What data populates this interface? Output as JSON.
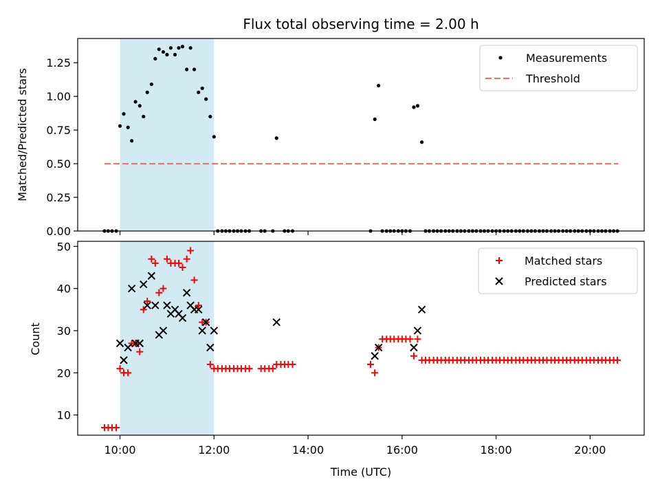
{
  "chart_data": [
    {
      "type": "scatter",
      "title": "Flux total observing time = 2.00 h",
      "xlabel": "",
      "ylabel": "Matched/Predicted stars",
      "xlim_hours": [
        9.1,
        21.15
      ],
      "ylim": [
        0,
        1.43
      ],
      "yticks": [
        "0.00",
        "0.25",
        "0.50",
        "0.75",
        "1.00",
        "1.25"
      ],
      "ytick_values": [
        0,
        0.25,
        0.5,
        0.75,
        1.0,
        1.25
      ],
      "highlight_span_hours": [
        10.0,
        12.0
      ],
      "colors": {
        "highlight": "#add8e6",
        "measurements": "#000000",
        "threshold": "#ff6666"
      },
      "legend": {
        "placement": "upper right",
        "entries": [
          "Measurements",
          "Threshold"
        ]
      },
      "threshold": {
        "name": "Threshold",
        "value": 0.5,
        "x_range_hours": [
          9.67,
          20.6
        ]
      },
      "series": [
        {
          "name": "Measurements",
          "points": [
            [
              9.67,
              0
            ],
            [
              9.75,
              0
            ],
            [
              9.83,
              0
            ],
            [
              9.92,
              0
            ],
            [
              10.0,
              0.78
            ],
            [
              10.08,
              0.87
            ],
            [
              10.17,
              0.77
            ],
            [
              10.25,
              0.67
            ],
            [
              10.33,
              0.96
            ],
            [
              10.42,
              0.93
            ],
            [
              10.5,
              0.85
            ],
            [
              10.58,
              1.03
            ],
            [
              10.67,
              1.09
            ],
            [
              10.75,
              1.28
            ],
            [
              10.83,
              1.35
            ],
            [
              10.92,
              1.33
            ],
            [
              11.0,
              1.31
            ],
            [
              11.08,
              1.36
            ],
            [
              11.17,
              1.31
            ],
            [
              11.25,
              1.36
            ],
            [
              11.33,
              1.37
            ],
            [
              11.42,
              1.2
            ],
            [
              11.5,
              1.36
            ],
            [
              11.58,
              1.2
            ],
            [
              11.67,
              1.03
            ],
            [
              11.75,
              1.06
            ],
            [
              11.83,
              0.98
            ],
            [
              11.92,
              0.85
            ],
            [
              12.0,
              0.7
            ],
            [
              12.08,
              0
            ],
            [
              12.17,
              0
            ],
            [
              12.25,
              0
            ],
            [
              12.33,
              0
            ],
            [
              12.42,
              0
            ],
            [
              12.5,
              0
            ],
            [
              12.58,
              0
            ],
            [
              12.67,
              0
            ],
            [
              12.75,
              0
            ],
            [
              13.0,
              0
            ],
            [
              13.08,
              0
            ],
            [
              13.25,
              0
            ],
            [
              13.33,
              0.69
            ],
            [
              13.5,
              0
            ],
            [
              13.58,
              0
            ],
            [
              13.67,
              0
            ],
            [
              15.33,
              0
            ],
            [
              15.42,
              0.83
            ],
            [
              15.5,
              1.08
            ],
            [
              15.58,
              0
            ],
            [
              15.67,
              0
            ],
            [
              15.75,
              0
            ],
            [
              15.83,
              0
            ],
            [
              15.92,
              0
            ],
            [
              16.0,
              0
            ],
            [
              16.08,
              0
            ],
            [
              16.17,
              0
            ],
            [
              16.25,
              0.92
            ],
            [
              16.33,
              0.93
            ],
            [
              16.42,
              0.66
            ],
            [
              16.5,
              0
            ],
            [
              16.58,
              0
            ],
            [
              16.67,
              0
            ],
            [
              16.75,
              0
            ],
            [
              16.83,
              0
            ],
            [
              16.92,
              0
            ],
            [
              17.0,
              0
            ],
            [
              17.08,
              0
            ],
            [
              17.17,
              0
            ],
            [
              17.25,
              0
            ],
            [
              17.33,
              0
            ],
            [
              17.42,
              0
            ],
            [
              17.5,
              0
            ],
            [
              17.58,
              0
            ],
            [
              17.67,
              0
            ],
            [
              17.75,
              0
            ],
            [
              17.83,
              0
            ],
            [
              17.92,
              0
            ],
            [
              18.0,
              0
            ],
            [
              18.08,
              0
            ],
            [
              18.17,
              0
            ],
            [
              18.25,
              0
            ],
            [
              18.33,
              0
            ],
            [
              18.42,
              0
            ],
            [
              18.5,
              0
            ],
            [
              18.58,
              0
            ],
            [
              18.67,
              0
            ],
            [
              18.75,
              0
            ],
            [
              18.83,
              0
            ],
            [
              18.92,
              0
            ],
            [
              19.0,
              0
            ],
            [
              19.08,
              0
            ],
            [
              19.17,
              0
            ],
            [
              19.25,
              0
            ],
            [
              19.33,
              0
            ],
            [
              19.42,
              0
            ],
            [
              19.5,
              0
            ],
            [
              19.58,
              0
            ],
            [
              19.67,
              0
            ],
            [
              19.75,
              0
            ],
            [
              19.83,
              0
            ],
            [
              19.92,
              0
            ],
            [
              20.0,
              0
            ],
            [
              20.08,
              0
            ],
            [
              20.17,
              0
            ],
            [
              20.25,
              0
            ],
            [
              20.33,
              0
            ],
            [
              20.42,
              0
            ],
            [
              20.5,
              0
            ],
            [
              20.58,
              0
            ]
          ]
        }
      ]
    },
    {
      "type": "scatter",
      "title": "",
      "xlabel": "Time (UTC)",
      "ylabel": "Count",
      "xlim_hours": [
        9.1,
        21.15
      ],
      "ylim": [
        5.2,
        51.2
      ],
      "yticks": [
        "10",
        "20",
        "30",
        "40",
        "50"
      ],
      "ytick_values": [
        10,
        20,
        30,
        40,
        50
      ],
      "xticks": [
        "10:00",
        "12:00",
        "14:00",
        "16:00",
        "18:00",
        "20:00"
      ],
      "xtick_values": [
        10,
        12,
        14,
        16,
        18,
        20
      ],
      "highlight_span_hours": [
        10.0,
        12.0
      ],
      "colors": {
        "highlight": "#add8e6",
        "matched": "#ff0000",
        "predicted": "#000000"
      },
      "legend": {
        "placement": "upper right",
        "entries": [
          "Matched stars",
          "Predicted stars"
        ]
      },
      "series": [
        {
          "name": "Matched stars",
          "marker": "plus",
          "points": [
            [
              9.67,
              7
            ],
            [
              9.75,
              7
            ],
            [
              9.83,
              7
            ],
            [
              9.92,
              7
            ],
            [
              10.0,
              21
            ],
            [
              10.08,
              20
            ],
            [
              10.17,
              20
            ],
            [
              10.25,
              27
            ],
            [
              10.33,
              27
            ],
            [
              10.42,
              25
            ],
            [
              10.5,
              35
            ],
            [
              10.58,
              37
            ],
            [
              10.67,
              47
            ],
            [
              10.75,
              46
            ],
            [
              10.83,
              39
            ],
            [
              10.92,
              40
            ],
            [
              11.0,
              47
            ],
            [
              11.08,
              46
            ],
            [
              11.17,
              46
            ],
            [
              11.25,
              46
            ],
            [
              11.33,
              45
            ],
            [
              11.42,
              47
            ],
            [
              11.5,
              49
            ],
            [
              11.58,
              42
            ],
            [
              11.67,
              36
            ],
            [
              11.75,
              32
            ],
            [
              11.83,
              32
            ],
            [
              11.92,
              22
            ],
            [
              12.0,
              21
            ],
            [
              12.08,
              21
            ],
            [
              12.17,
              21
            ],
            [
              12.25,
              21
            ],
            [
              12.33,
              21
            ],
            [
              12.42,
              21
            ],
            [
              12.5,
              21
            ],
            [
              12.58,
              21
            ],
            [
              12.67,
              21
            ],
            [
              12.75,
              21
            ],
            [
              13.0,
              21
            ],
            [
              13.08,
              21
            ],
            [
              13.17,
              21
            ],
            [
              13.25,
              21
            ],
            [
              13.33,
              22
            ],
            [
              13.42,
              22
            ],
            [
              13.5,
              22
            ],
            [
              13.58,
              22
            ],
            [
              13.67,
              22
            ],
            [
              15.33,
              22
            ],
            [
              15.42,
              20
            ],
            [
              15.5,
              26
            ],
            [
              15.58,
              28
            ],
            [
              15.67,
              28
            ],
            [
              15.75,
              28
            ],
            [
              15.83,
              28
            ],
            [
              15.92,
              28
            ],
            [
              16.0,
              28
            ],
            [
              16.08,
              28
            ],
            [
              16.17,
              28
            ],
            [
              16.25,
              24
            ],
            [
              16.33,
              28
            ],
            [
              16.42,
              23
            ],
            [
              16.5,
              23
            ],
            [
              16.58,
              23
            ],
            [
              16.67,
              23
            ],
            [
              16.75,
              23
            ],
            [
              16.83,
              23
            ],
            [
              16.92,
              23
            ],
            [
              17.0,
              23
            ],
            [
              17.08,
              23
            ],
            [
              17.17,
              23
            ],
            [
              17.25,
              23
            ],
            [
              17.33,
              23
            ],
            [
              17.42,
              23
            ],
            [
              17.5,
              23
            ],
            [
              17.58,
              23
            ],
            [
              17.67,
              23
            ],
            [
              17.75,
              23
            ],
            [
              17.83,
              23
            ],
            [
              17.92,
              23
            ],
            [
              18.0,
              23
            ],
            [
              18.08,
              23
            ],
            [
              18.17,
              23
            ],
            [
              18.25,
              23
            ],
            [
              18.33,
              23
            ],
            [
              18.42,
              23
            ],
            [
              18.5,
              23
            ],
            [
              18.58,
              23
            ],
            [
              18.67,
              23
            ],
            [
              18.75,
              23
            ],
            [
              18.83,
              23
            ],
            [
              18.92,
              23
            ],
            [
              19.0,
              23
            ],
            [
              19.08,
              23
            ],
            [
              19.17,
              23
            ],
            [
              19.25,
              23
            ],
            [
              19.33,
              23
            ],
            [
              19.42,
              23
            ],
            [
              19.5,
              23
            ],
            [
              19.58,
              23
            ],
            [
              19.67,
              23
            ],
            [
              19.75,
              23
            ],
            [
              19.83,
              23
            ],
            [
              19.92,
              23
            ],
            [
              20.0,
              23
            ],
            [
              20.08,
              23
            ],
            [
              20.17,
              23
            ],
            [
              20.25,
              23
            ],
            [
              20.33,
              23
            ],
            [
              20.42,
              23
            ],
            [
              20.5,
              23
            ],
            [
              20.58,
              23
            ]
          ]
        },
        {
          "name": "Predicted stars",
          "marker": "x",
          "points": [
            [
              10.0,
              27
            ],
            [
              10.08,
              23
            ],
            [
              10.17,
              26
            ],
            [
              10.25,
              40
            ],
            [
              10.33,
              27
            ],
            [
              10.42,
              27
            ],
            [
              10.5,
              41
            ],
            [
              10.58,
              36
            ],
            [
              10.67,
              43
            ],
            [
              10.75,
              36
            ],
            [
              10.83,
              29
            ],
            [
              10.92,
              30
            ],
            [
              11.0,
              36
            ],
            [
              11.08,
              34
            ],
            [
              11.17,
              35
            ],
            [
              11.25,
              34
            ],
            [
              11.33,
              33
            ],
            [
              11.42,
              39
            ],
            [
              11.5,
              36
            ],
            [
              11.58,
              35
            ],
            [
              11.67,
              35
            ],
            [
              11.75,
              30
            ],
            [
              11.83,
              32
            ],
            [
              11.92,
              26
            ],
            [
              12.0,
              30
            ],
            [
              13.33,
              32
            ],
            [
              15.42,
              24
            ],
            [
              15.5,
              26
            ],
            [
              16.25,
              26
            ],
            [
              16.33,
              30
            ],
            [
              16.42,
              35
            ]
          ]
        }
      ]
    }
  ]
}
